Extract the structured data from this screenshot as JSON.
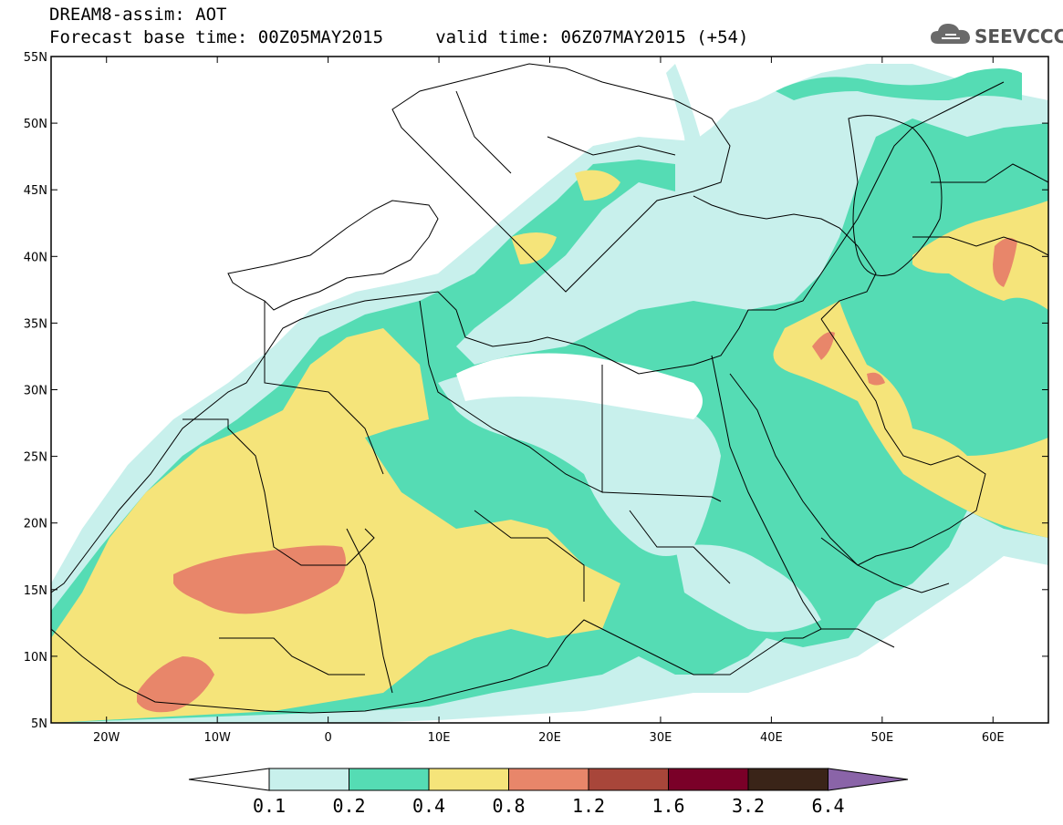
{
  "header": {
    "line1": "DREAM8-assim: AOT",
    "line2": "Forecast base time: 00Z05MAY2015     valid time: 06Z07MAY2015 (+54)"
  },
  "logo": {
    "text": "SEEVCCC",
    "icon": "cloud-icon"
  },
  "map": {
    "projection": "lat-lon",
    "lon_range": [
      -25,
      65
    ],
    "lat_range": [
      5,
      55
    ],
    "lat_labels": [
      "55N",
      "50N",
      "45N",
      "40N",
      "35N",
      "30N",
      "25N",
      "20N",
      "15N",
      "10N",
      "5N"
    ],
    "lon_labels": [
      "20W",
      "10W",
      "0",
      "10E",
      "20E",
      "30E",
      "40E",
      "50E",
      "60E"
    ]
  },
  "legend": {
    "labels": [
      "0.1",
      "0.2",
      "0.4",
      "0.8",
      "1.2",
      "1.6",
      "3.2",
      "6.4"
    ],
    "colors": [
      "#ffffff",
      "#c8f0ec",
      "#55dcb4",
      "#f5e47a",
      "#e8866a",
      "#a8463a",
      "#7a0028",
      "#3a2418",
      "#8a64a8"
    ]
  }
}
